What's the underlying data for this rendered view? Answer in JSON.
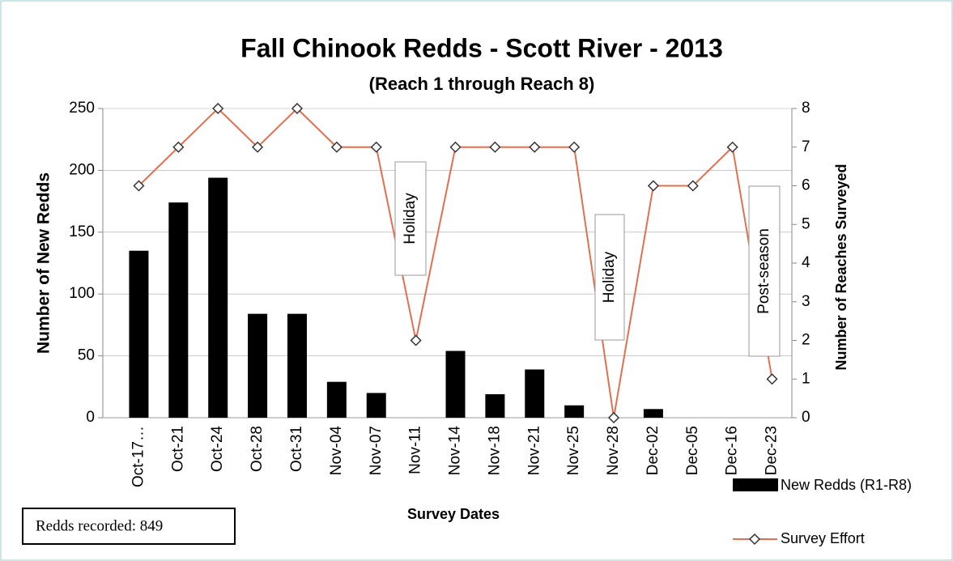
{
  "chart_data": {
    "type": "bar_line",
    "title": "Fall Chinook Redds - Scott River - 2013",
    "subtitle": "(Reach 1 through Reach 8)",
    "x_label": "Survey Dates",
    "y_label": "Number of New Redds",
    "y2_label": "Number of Reaches Surveyed",
    "categories": [
      "Oct-17…",
      "Oct-21",
      "Oct-24",
      "Oct-28",
      "Oct-31",
      "Nov-04",
      "Nov-07",
      "Nov-11",
      "Nov-14",
      "Nov-18",
      "Nov-21",
      "Nov-25",
      "Nov-28",
      "Dec-02",
      "Dec-05",
      "Dec-16",
      "Dec-23"
    ],
    "series": [
      {
        "name": "New Redds (R1-R8)",
        "color": "#000000",
        "type": "bar",
        "values": [
          135,
          174,
          194,
          84,
          84,
          29,
          20,
          0,
          54,
          19,
          39,
          10,
          0,
          7,
          0,
          0,
          0
        ]
      },
      {
        "name": "Survey Effort",
        "color": "#e07050",
        "type": "line",
        "axis": "y2",
        "values": [
          6,
          7,
          8,
          7,
          8,
          7,
          7,
          2,
          7,
          7,
          7,
          7,
          0,
          6,
          6,
          7,
          1
        ]
      }
    ],
    "ylim": [
      0,
      250
    ],
    "yticks": [
      0,
      50,
      100,
      150,
      200,
      250
    ],
    "y2lim": [
      0,
      8
    ],
    "y2ticks": [
      0,
      1,
      2,
      3,
      4,
      5,
      6,
      7,
      8
    ],
    "annotations": [
      {
        "text": "Holiday",
        "category": 7
      },
      {
        "text": "Holiday",
        "category": 12
      },
      {
        "text": "Post-season",
        "category": 16
      }
    ],
    "note": "Redds recorded: 849"
  }
}
